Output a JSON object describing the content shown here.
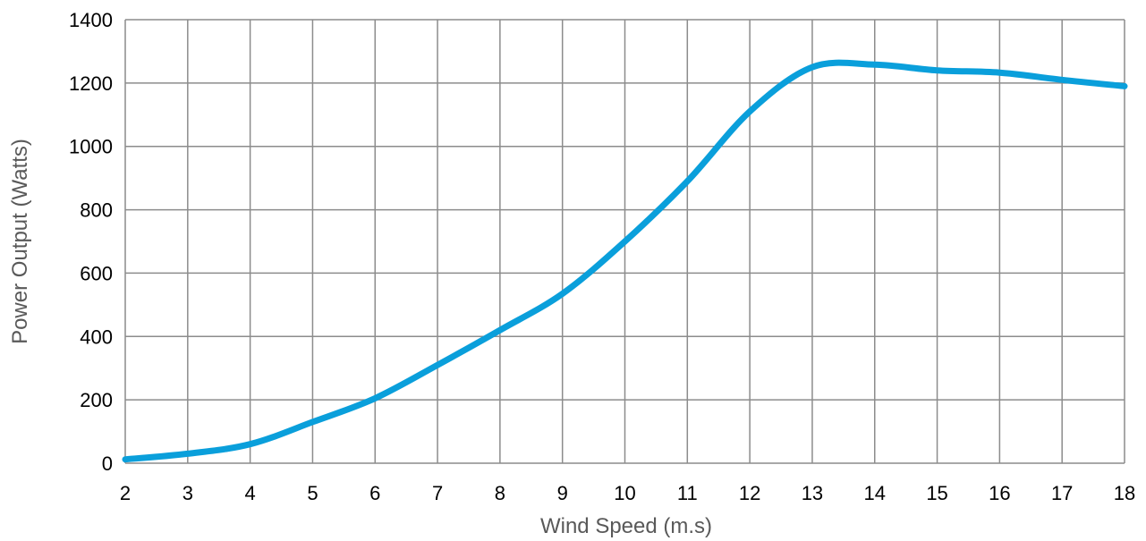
{
  "chart_data": {
    "type": "line",
    "title": "",
    "xlabel": "Wind Speed (m.s)",
    "ylabel": "Power Output (Watts)",
    "xlim": [
      2,
      18
    ],
    "ylim": [
      0,
      1400
    ],
    "x_ticks": [
      2,
      3,
      4,
      5,
      6,
      7,
      8,
      9,
      10,
      11,
      12,
      13,
      14,
      15,
      16,
      17,
      18
    ],
    "y_ticks": [
      0,
      200,
      400,
      600,
      800,
      1000,
      1200,
      1400
    ],
    "grid": true,
    "legend": "none",
    "series": [
      {
        "color": "#0a9fdb",
        "x": [
          2,
          3,
          4,
          5,
          6,
          7,
          8,
          9,
          10,
          11,
          12,
          13,
          14,
          15,
          16,
          17,
          18
        ],
        "y": [
          12,
          30,
          60,
          130,
          205,
          310,
          420,
          535,
          700,
          890,
          1110,
          1250,
          1258,
          1240,
          1233,
          1210,
          1190
        ]
      }
    ]
  }
}
